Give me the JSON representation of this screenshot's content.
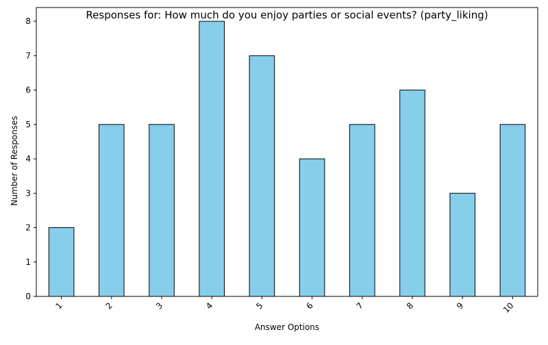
{
  "chart_data": {
    "type": "bar",
    "title": "Responses for: How much do you enjoy parties or social events? (party_liking)",
    "xlabel": "Answer Options",
    "ylabel": "Number of Responses",
    "categories": [
      "1",
      "2",
      "3",
      "4",
      "5",
      "6",
      "7",
      "8",
      "9",
      "10"
    ],
    "values": [
      2,
      5,
      5,
      8,
      7,
      4,
      5,
      6,
      3,
      5
    ],
    "ylim": [
      0,
      8.4
    ],
    "yticks": [
      0,
      1,
      2,
      3,
      4,
      5,
      6,
      7,
      8
    ],
    "grid": false,
    "bar_color": "#87ceeb",
    "bar_edge_color": "#000000",
    "x_tick_rotation_deg": 45
  }
}
